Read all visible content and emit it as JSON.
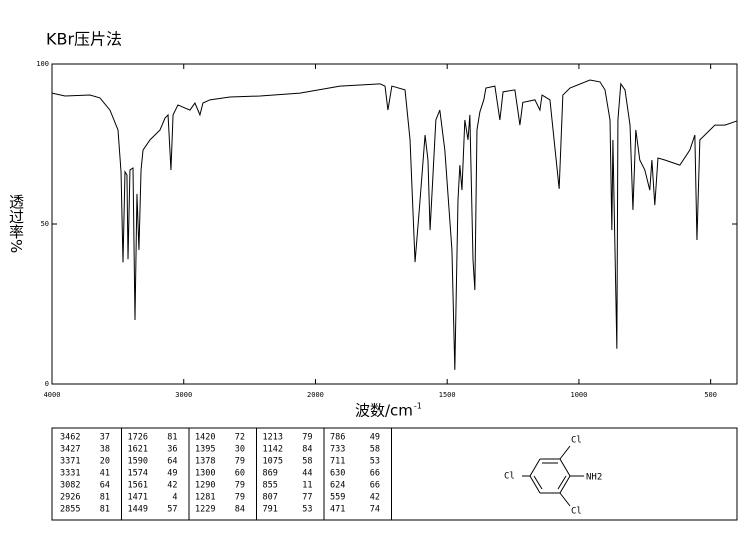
{
  "chart_data": {
    "type": "line",
    "title": "KBr压片法",
    "x_label": "波数/cm",
    "x_label_sup": "-1",
    "y_label": "透过率%",
    "xlim": [
      4000,
      400
    ],
    "x_scale_break": 2000,
    "xticks": [
      4000,
      3000,
      2000,
      1500,
      1000,
      500
    ],
    "ylim": [
      0,
      100
    ],
    "yticks": [
      0,
      50,
      100
    ],
    "grid": false,
    "series": [
      {
        "color": "#000000",
        "x": [
          4000,
          3901,
          3712,
          3636,
          3560,
          3499,
          3476,
          3461,
          3446,
          3431,
          3423,
          3408,
          3385,
          3370,
          3355,
          3340,
          3324,
          3309,
          3256,
          3180,
          3142,
          3119,
          3097,
          3081,
          3044,
          2953,
          2915,
          2877,
          2854,
          2801,
          2649,
          2421,
          2118,
          1907,
          1755,
          1736,
          1725,
          1710,
          1660,
          1641,
          1622,
          1603,
          1584,
          1573,
          1565,
          1554,
          1543,
          1528,
          1509,
          1482,
          1471,
          1459,
          1452,
          1444,
          1433,
          1421,
          1414,
          1402,
          1395,
          1387,
          1376,
          1361,
          1353,
          1319,
          1300,
          1288,
          1243,
          1224,
          1213,
          1167,
          1148,
          1140,
          1110,
          1075,
          1061,
          1034,
          958,
          920,
          901,
          882,
          875,
          871,
          856,
          852,
          841,
          825,
          806,
          795,
          784,
          769,
          750,
          731,
          723,
          712,
          700,
          674,
          617,
          579,
          560,
          552,
          541,
          522,
          484,
          446,
          400
        ],
        "values": [
          90.9,
          90.0,
          90.3,
          89.4,
          85.6,
          79.4,
          66.3,
          38,
          66.3,
          65.3,
          39,
          66.9,
          67.5,
          20,
          59.4,
          41.9,
          66.9,
          73.1,
          76.3,
          79.4,
          83.1,
          84.1,
          66.9,
          84.1,
          87.2,
          85.6,
          87.8,
          84.1,
          87.8,
          88.8,
          89.7,
          90.0,
          90.9,
          93.1,
          93.8,
          93.1,
          85.6,
          93.1,
          91.9,
          76.3,
          38.1,
          57.5,
          77.8,
          70,
          48.1,
          65.3,
          82.5,
          85.6,
          73.1,
          41.9,
          4.4,
          57.5,
          68.4,
          60.6,
          82.5,
          76.3,
          84.1,
          38.8,
          29.4,
          79.4,
          85,
          88.8,
          92.5,
          93.1,
          82.5,
          91.3,
          91.9,
          80.9,
          88,
          88.8,
          85.6,
          90.3,
          88.8,
          61,
          90.3,
          92.5,
          95,
          94.4,
          91.9,
          82.5,
          48.1,
          76.3,
          11,
          82.5,
          93.8,
          91.9,
          80.9,
          54.4,
          79.4,
          70,
          66.9,
          60.6,
          70,
          55.9,
          70.6,
          70,
          68.4,
          73.1,
          77.8,
          45,
          76.3,
          77.8,
          80.9,
          80.9,
          82.2
        ]
      }
    ]
  },
  "peak_table": [
    [
      3462,
      37
    ],
    [
      3427,
      38
    ],
    [
      3371,
      20
    ],
    [
      3331,
      41
    ],
    [
      3082,
      64
    ],
    [
      2926,
      81
    ],
    [
      2855,
      81
    ],
    [
      1726,
      81
    ],
    [
      1621,
      36
    ],
    [
      1590,
      64
    ],
    [
      1574,
      49
    ],
    [
      1561,
      42
    ],
    [
      1471,
      4
    ],
    [
      1449,
      57
    ],
    [
      1420,
      72
    ],
    [
      1395,
      30
    ],
    [
      1378,
      79
    ],
    [
      1300,
      60
    ],
    [
      1290,
      79
    ],
    [
      1281,
      79
    ],
    [
      1229,
      84
    ],
    [
      1213,
      79
    ],
    [
      1142,
      84
    ],
    [
      1075,
      58
    ],
    [
      869,
      44
    ],
    [
      855,
      11
    ],
    [
      807,
      77
    ],
    [
      791,
      53
    ],
    [
      786,
      49
    ],
    [
      733,
      58
    ],
    [
      711,
      53
    ],
    [
      630,
      66
    ],
    [
      624,
      66
    ],
    [
      559,
      42
    ],
    [
      471,
      74
    ]
  ],
  "structure": {
    "atoms": [
      "Cl",
      "Cl",
      "Cl",
      "NH2"
    ]
  }
}
